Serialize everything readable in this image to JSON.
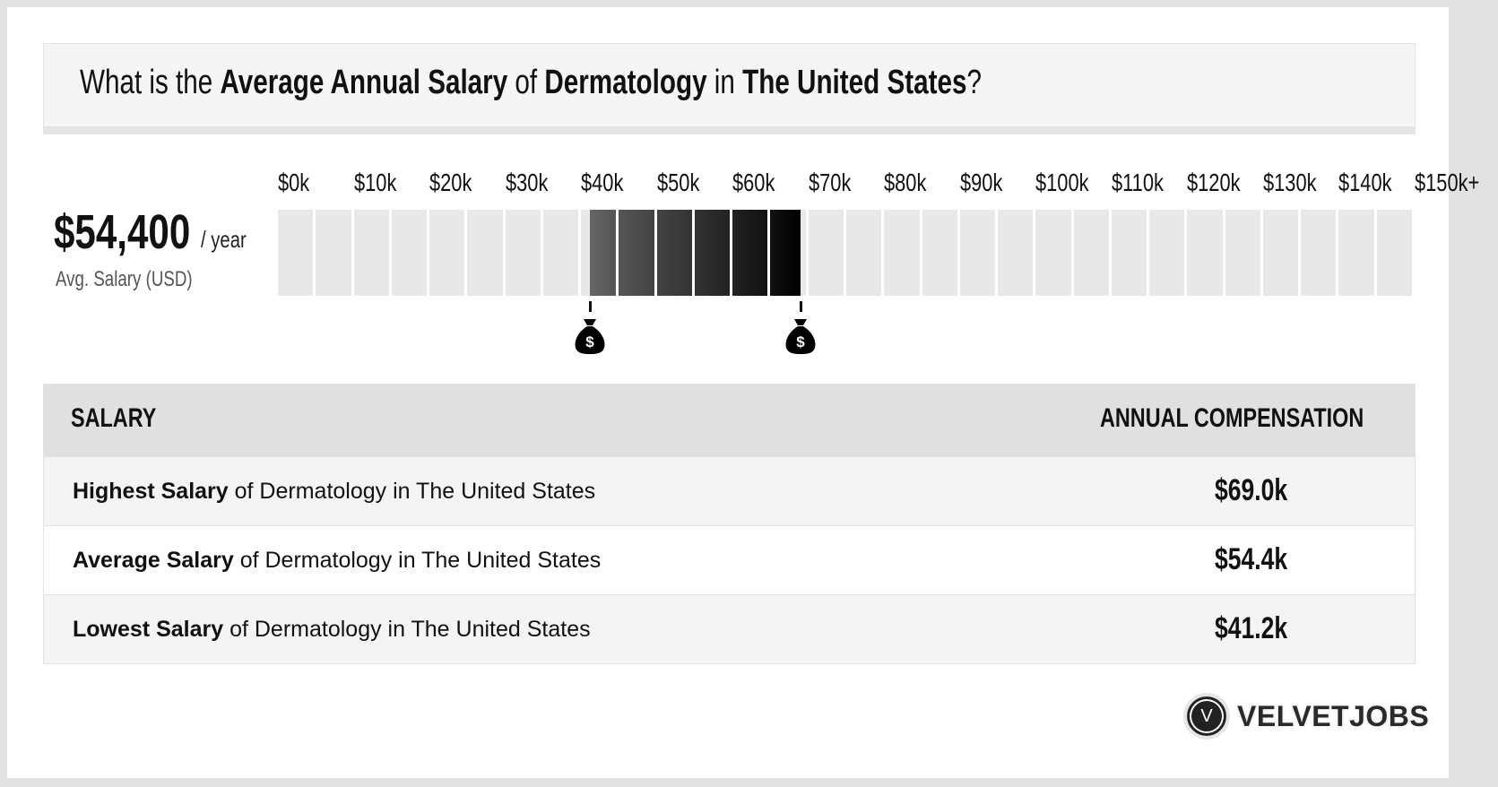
{
  "title": {
    "p1": "What is the ",
    "b1": "Average Annual Salary",
    "p2": " of ",
    "b2": "Dermatology",
    "p3": " in ",
    "b3": "The United States",
    "p4": "?"
  },
  "summary": {
    "value": "$54,400",
    "unit": "/ year",
    "label": "Avg. Salary (USD)"
  },
  "chart_data": {
    "type": "bar",
    "subtype": "salary-range",
    "tick_labels": [
      "$0k",
      "$10k",
      "$20k",
      "$30k",
      "$40k",
      "$50k",
      "$60k",
      "$70k",
      "$80k",
      "$90k",
      "$100k",
      "$110k",
      "$120k",
      "$130k",
      "$140k",
      "$150k+"
    ],
    "xlim": [
      0,
      150
    ],
    "segment_step": 5,
    "range": {
      "low": 41.2,
      "average": 54.4,
      "high": 69.0
    },
    "colors": {
      "empty": "#e8e8e8",
      "fill_start": "#666666",
      "fill_end": "#000000"
    },
    "markers": [
      {
        "value": 41.2,
        "icon": "money-bag-icon"
      },
      {
        "value": 69.0,
        "icon": "money-bag-icon"
      }
    ]
  },
  "table": {
    "headers": [
      "SALARY",
      "ANNUAL COMPENSATION"
    ],
    "rows": [
      {
        "bold": "Highest Salary",
        "rest": " of Dermatology in The United States",
        "value": "$69.0k"
      },
      {
        "bold": "Average Salary",
        "rest": " of Dermatology in The United States",
        "value": "$54.4k"
      },
      {
        "bold": "Lowest Salary",
        "rest": " of Dermatology in The United States",
        "value": "$41.2k"
      }
    ]
  },
  "logo": {
    "mark": "V",
    "text": "VELVETJOBS"
  }
}
